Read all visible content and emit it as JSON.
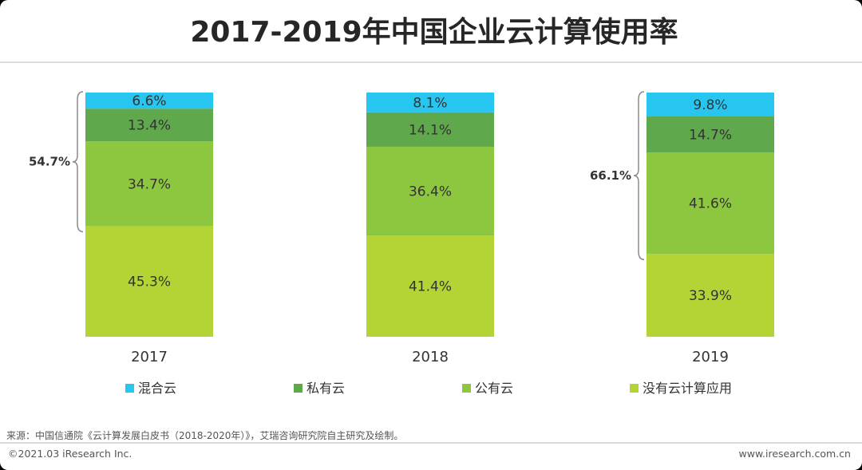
{
  "chart_data": {
    "type": "bar",
    "stacked": true,
    "title": "2017-2019年中国企业云计算使用率",
    "categories": [
      "2017",
      "2018",
      "2019"
    ],
    "ylim": [
      0,
      100
    ],
    "series": [
      {
        "name": "没有云计算应用",
        "color": "#b3d434",
        "values": [
          45.3,
          41.4,
          33.9
        ]
      },
      {
        "name": "公有云",
        "color": "#8dc63f",
        "values": [
          34.7,
          36.4,
          41.6
        ]
      },
      {
        "name": "私有云",
        "color": "#5fa84b",
        "values": [
          13.4,
          14.1,
          14.7
        ]
      },
      {
        "name": "混合云",
        "color": "#26c6f0",
        "values": [
          6.6,
          8.1,
          9.8
        ]
      }
    ],
    "labels": [
      [
        "45.3%",
        "41.4%",
        "33.9%"
      ],
      [
        "34.7%",
        "36.4%",
        "41.6%"
      ],
      [
        "13.4%",
        "14.1%",
        "14.7%"
      ],
      [
        "6.6%",
        "8.1%",
        "9.8%"
      ]
    ],
    "legend": [
      {
        "name": "混合云",
        "color": "#26c6f0"
      },
      {
        "name": "私有云",
        "color": "#5fa84b"
      },
      {
        "name": "公有云",
        "color": "#8dc63f"
      },
      {
        "name": "没有云计算应用",
        "color": "#b3d434"
      }
    ],
    "legend_position": "bottom",
    "annotations": [
      {
        "category": "2017",
        "label": "54.7%",
        "spans_series": [
          "公有云",
          "私有云",
          "混合云"
        ]
      },
      {
        "category": "2019",
        "label": "66.1%",
        "spans_series": [
          "公有云",
          "私有云",
          "混合云"
        ]
      }
    ]
  },
  "source": "来源：中国信通院《云计算发展白皮书（2018-2020年）》，艾瑞咨询研究院自主研究及绘制。",
  "footer": {
    "copyright": "©2021.03 iResearch Inc.",
    "website": "www.iresearch.com.cn"
  }
}
